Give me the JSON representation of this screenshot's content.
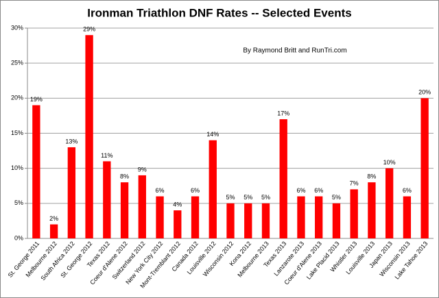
{
  "chart_data": {
    "type": "bar",
    "title": "Ironman Triathlon DNF Rates -- Selected Events",
    "annotation": "By Raymond Britt and RunTri.com",
    "categories": [
      "St. George 2011",
      "Melbourne 2012",
      "South Africa 2012",
      "St. George 2012",
      "Texas 2012",
      "Coeur d'Alene 2012",
      "Switzerland 2012",
      "New York City 2012",
      "Mont-Tremblant 2012",
      "Canada 2012",
      "Louisville 2012",
      "Wisconsin 2012",
      "Kona 2012",
      "Melbourne 2013",
      "Texas 2013",
      "Lanzarote 2013",
      "Coeur d'Alene 2013",
      "Lake Placid 2013",
      "Whistler 2013",
      "Louisville 2013",
      "Japan 2013",
      "Wisconsin 2013",
      "Lake Tahoe 2013"
    ],
    "values": [
      19,
      2,
      13,
      29,
      11,
      8,
      9,
      6,
      4,
      6,
      14,
      5,
      5,
      5,
      17,
      6,
      6,
      5,
      7,
      8,
      10,
      6,
      20
    ],
    "value_labels": [
      "19%",
      "2%",
      "13%",
      "29%",
      "11%",
      "8%",
      "9%",
      "6%",
      "4%",
      "6%",
      "14%",
      "5%",
      "5%",
      "5%",
      "17%",
      "6%",
      "6%",
      "5%",
      "7%",
      "8%",
      "10%",
      "6%",
      "20%"
    ],
    "color": "#ff0000",
    "ylim": [
      0,
      30
    ],
    "yticks": [
      {
        "value": 0,
        "label": "0%"
      },
      {
        "value": 5,
        "label": "5%"
      },
      {
        "value": 10,
        "label": "10%"
      },
      {
        "value": 15,
        "label": "15%"
      },
      {
        "value": 20,
        "label": "20%"
      },
      {
        "value": 25,
        "label": "25%"
      },
      {
        "value": 30,
        "label": "30%"
      }
    ],
    "grid": true
  }
}
